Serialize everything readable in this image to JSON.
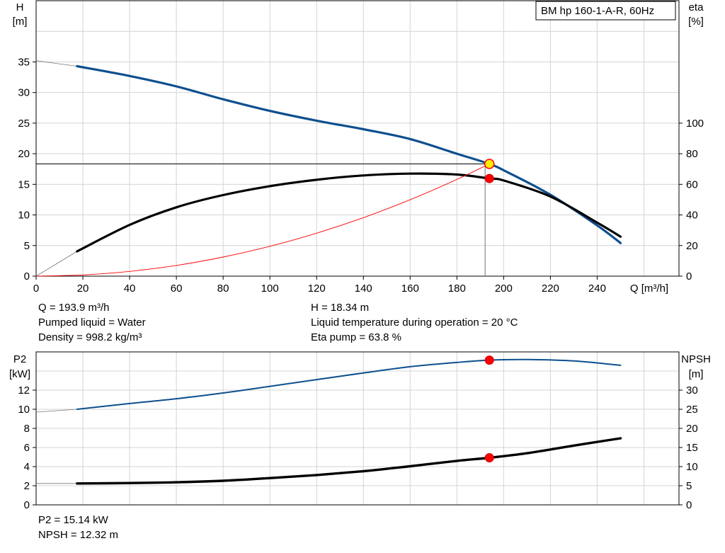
{
  "chart_data": [
    {
      "type": "line",
      "legend_box": "BM hp 160-1-A-R, 60Hz",
      "legend_placement": "top-right",
      "xlabel": "Q [m³/h]",
      "ylabel_top": "H",
      "ylabel_unit": "[m]",
      "y2label_top": "eta",
      "y2label_unit": "[%]",
      "xlim": [
        0,
        275
      ],
      "ylim": [
        0,
        45
      ],
      "y2lim": [
        0,
        180
      ],
      "grid": true,
      "x_ticks": [
        0,
        20,
        40,
        60,
        80,
        100,
        120,
        140,
        160,
        180,
        200,
        220,
        240
      ],
      "y_ticks": [
        0,
        5,
        10,
        15,
        20,
        25,
        30,
        35
      ],
      "y2_ticks": [
        0,
        20,
        40,
        60,
        80,
        100
      ],
      "series": [
        {
          "axis": "left",
          "color": "#0e4f8e",
          "extrapolated": [
            [
              0,
              35.2
            ],
            [
              17.5,
              34.3
            ]
          ],
          "points": [
            [
              17.5,
              34.3
            ],
            [
              40,
              32.7
            ],
            [
              60,
              31.0
            ],
            [
              80,
              28.9
            ],
            [
              100,
              27.0
            ],
            [
              120,
              25.4
            ],
            [
              140,
              24.0
            ],
            [
              160,
              22.4
            ],
            [
              180,
              20.0
            ],
            [
              193.9,
              18.34
            ],
            [
              200,
              17.3
            ],
            [
              220,
              13.3
            ],
            [
              240,
              8.3
            ],
            [
              250,
              5.4
            ]
          ]
        },
        {
          "axis": "right",
          "color": "#000000",
          "extrapolated": [
            [
              0,
              0
            ],
            [
              17.5,
              16.2
            ]
          ],
          "points": [
            [
              17.5,
              16.2
            ],
            [
              40,
              33.5
            ],
            [
              60,
              45.0
            ],
            [
              80,
              53.0
            ],
            [
              100,
              58.8
            ],
            [
              120,
              63.0
            ],
            [
              140,
              65.8
            ],
            [
              160,
              67.0
            ],
            [
              180,
              66.4
            ],
            [
              193.9,
              63.8
            ],
            [
              200,
              62.5
            ],
            [
              220,
              52.0
            ],
            [
              240,
              35.0
            ],
            [
              250,
              25.8
            ]
          ]
        },
        {
          "axis": "left",
          "color": "#ff0000",
          "points": [
            [
              0,
              0
            ],
            [
              20,
              0.2
            ],
            [
              40,
              0.78
            ],
            [
              60,
              1.75
            ],
            [
              80,
              3.12
            ],
            [
              100,
              4.88
            ],
            [
              120,
              7.02
            ],
            [
              140,
              9.56
            ],
            [
              160,
              12.48
            ],
            [
              180,
              15.8
            ],
            [
              193.9,
              18.34
            ]
          ]
        }
      ],
      "system_curve_color": "#ff0000",
      "operating_point": {
        "q": 193.9,
        "h": 18.34,
        "eta": 63.8
      }
    },
    {
      "type": "line",
      "ylabel_top": "P2",
      "ylabel_unit": "[kW]",
      "y2label_top": "NPSH",
      "y2label_unit": "[m]",
      "xlim": [
        0,
        275
      ],
      "ylim": [
        0,
        16
      ],
      "y2lim": [
        0,
        40
      ],
      "grid": true,
      "y_ticks": [
        0,
        2,
        4,
        6,
        8,
        10,
        12
      ],
      "y2_ticks": [
        0,
        5,
        10,
        15,
        20,
        25,
        30
      ],
      "series": [
        {
          "axis": "left",
          "color": "#0e4f8e",
          "extrapolated": [
            [
              0,
              9.7
            ],
            [
              17.5,
              10.0
            ]
          ],
          "points": [
            [
              17.5,
              10.0
            ],
            [
              40,
              10.6
            ],
            [
              60,
              11.1
            ],
            [
              80,
              11.7
            ],
            [
              100,
              12.4
            ],
            [
              120,
              13.1
            ],
            [
              140,
              13.8
            ],
            [
              160,
              14.45
            ],
            [
              180,
              14.9
            ],
            [
              193.9,
              15.14
            ],
            [
              210,
              15.2
            ],
            [
              230,
              15.05
            ],
            [
              250,
              14.6
            ]
          ]
        },
        {
          "axis": "right",
          "color": "#000000",
          "extrapolated": [
            [
              0,
              5.6
            ],
            [
              17.5,
              5.6
            ]
          ],
          "points": [
            [
              17.5,
              5.6
            ],
            [
              40,
              5.7
            ],
            [
              60,
              5.9
            ],
            [
              80,
              6.3
            ],
            [
              100,
              7.0
            ],
            [
              120,
              7.8
            ],
            [
              140,
              8.8
            ],
            [
              160,
              10.1
            ],
            [
              180,
              11.5
            ],
            [
              193.9,
              12.32
            ],
            [
              210,
              13.5
            ],
            [
              230,
              15.5
            ],
            [
              250,
              17.4
            ]
          ]
        }
      ],
      "operating_point": {
        "q": 193.9,
        "p2": 15.14,
        "npsh": 12.32
      }
    }
  ],
  "info_top": {
    "q": "Q = 193.9 m³/h",
    "liquid": "Pumped liquid = Water",
    "density": "Density = 998.2 kg/m³",
    "h": "H = 18.34 m",
    "temp": "Liquid temperature during operation = 20 °C",
    "eta": "Eta pump = 63.8 %"
  },
  "info_bottom": {
    "p2": "P2 = 15.14 kW",
    "npsh": "NPSH = 12.32 m"
  }
}
